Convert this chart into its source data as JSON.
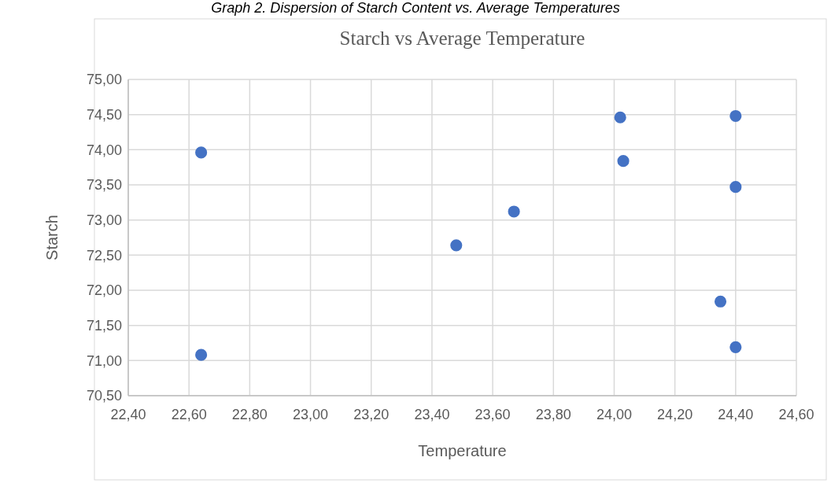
{
  "chart_data": {
    "type": "scatter",
    "title": "Starch vs Average Temperature",
    "xlabel": "Temperature",
    "ylabel": "Starch",
    "annotations": [
      "Graph 2. Dispersion of Starch Content vs. Average Temperatures"
    ],
    "x": [
      22.64,
      22.64,
      23.48,
      23.67,
      24.02,
      24.03,
      24.4,
      24.4,
      24.35,
      24.4
    ],
    "series": [
      {
        "color": "#4472c4",
        "values": [
          73.96,
          71.08,
          72.64,
          73.12,
          74.46,
          73.84,
          74.48,
          73.47,
          71.84,
          71.19
        ]
      }
    ],
    "xlim": [
      22.4,
      24.6
    ],
    "xticks": [
      {
        "value": 22.4,
        "label": "22,40"
      },
      {
        "value": 22.6,
        "label": "22,60"
      },
      {
        "value": 22.8,
        "label": "22,80"
      },
      {
        "value": 23.0,
        "label": "23,00"
      },
      {
        "value": 23.2,
        "label": "23,20"
      },
      {
        "value": 23.4,
        "label": "23,40"
      },
      {
        "value": 23.6,
        "label": "23,60"
      },
      {
        "value": 23.8,
        "label": "23,80"
      },
      {
        "value": 24.0,
        "label": "24,00"
      },
      {
        "value": 24.2,
        "label": "24,20"
      },
      {
        "value": 24.4,
        "label": "24,40"
      },
      {
        "value": 24.6,
        "label": "24,60"
      }
    ],
    "ylim": [
      70.5,
      75
    ],
    "yticks": [
      {
        "value": 70.5,
        "label": "70,50"
      },
      {
        "value": 71,
        "label": "71,00"
      },
      {
        "value": 71.5,
        "label": "71,50"
      },
      {
        "value": 72,
        "label": "72,00"
      },
      {
        "value": 72.5,
        "label": "72,50"
      },
      {
        "value": 73,
        "label": "73,00"
      },
      {
        "value": 73.5,
        "label": "73,50"
      },
      {
        "value": 74,
        "label": "74,00"
      },
      {
        "value": 74.5,
        "label": "74,50"
      },
      {
        "value": 75,
        "label": "75,00"
      }
    ],
    "grid": true,
    "marker": "circle"
  }
}
